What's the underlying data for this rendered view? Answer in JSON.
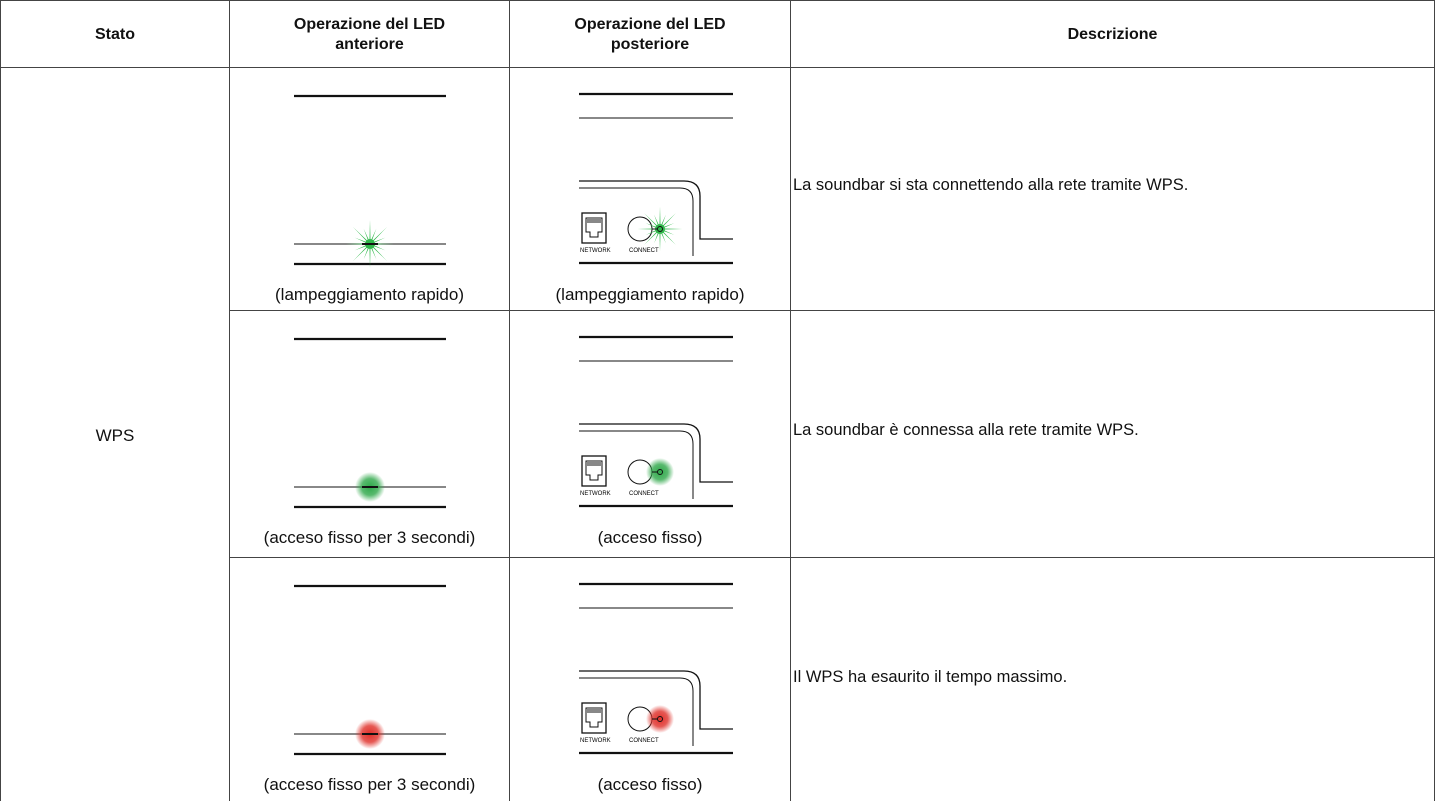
{
  "table": {
    "header": [
      "Stato",
      "Operazione del LED anteriore",
      "Operazione del LED posteriore",
      "Descrizione"
    ],
    "status": "WPS",
    "rows": [
      {
        "front": "(lampeggiamento rapido)",
        "rear": "(lampeggiamento rapido)",
        "description": "La soundbar si sta connettendo alla rete tramite WPS."
      },
      {
        "front": "(acceso fisso per 3 secondi)",
        "rear": "(acceso fisso)",
        "description": "La soundbar è connessa alla rete tramite WPS."
      },
      {
        "front": "(acceso fisso per 3 secondi)",
        "rear": "(acceso fisso)",
        "description": "Il WPS ha esaurito il tempo massimo."
      }
    ]
  },
  "panel_labels": {
    "network": "NETWORK",
    "connect": "CONNECT"
  }
}
